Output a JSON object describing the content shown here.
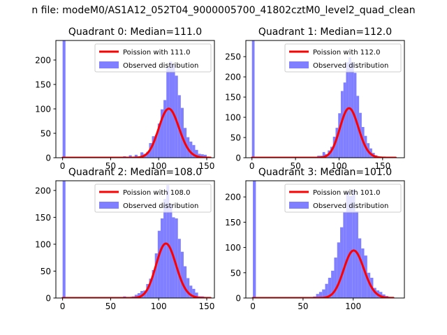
{
  "suptitle": "n file: modeM0/AS1A12_052T04_9000005700_41802cztM0_level2_quad_clean",
  "colors": {
    "poisson": "#ff0000",
    "observed": "#7f7fff"
  },
  "chart_data": [
    {
      "type": "bar",
      "title": "Quadrant 0: Median=111.0",
      "xlim": [
        -7,
        158
      ],
      "ylim": [
        0,
        240
      ],
      "xticks": [
        0,
        50,
        100,
        150
      ],
      "yticks": [
        0,
        50,
        100,
        150,
        200
      ],
      "legend_position": "top-right",
      "series": [
        {
          "name": "Observed distribution",
          "kind": "histogram",
          "bins": [
            [
              0,
              3,
              240
            ],
            [
              63,
              66,
              3
            ],
            [
              69,
              72,
              5
            ],
            [
              72,
              75,
              1
            ],
            [
              75,
              78,
              6
            ],
            [
              78,
              81,
              2
            ],
            [
              81,
              84,
              11
            ],
            [
              84,
              87,
              8
            ],
            [
              87,
              90,
              12
            ],
            [
              90,
              93,
              30
            ],
            [
              93,
              96,
              44
            ],
            [
              96,
              99,
              47
            ],
            [
              99,
              102,
              70
            ],
            [
              102,
              105,
              99
            ],
            [
              105,
              108,
              118
            ],
            [
              108,
              111,
              185
            ],
            [
              111,
              114,
              197
            ],
            [
              114,
              117,
              190
            ],
            [
              117,
              120,
              168
            ],
            [
              120,
              123,
              128
            ],
            [
              123,
              126,
              102
            ],
            [
              126,
              129,
              61
            ],
            [
              129,
              132,
              42
            ],
            [
              132,
              135,
              33
            ],
            [
              135,
              138,
              26
            ],
            [
              138,
              141,
              16
            ],
            [
              141,
              144,
              8
            ],
            [
              144,
              147,
              7
            ],
            [
              147,
              150,
              6
            ],
            [
              150,
              153,
              2
            ]
          ]
        },
        {
          "name": "Poission with 111.0",
          "kind": "poisson",
          "mean": 111.0,
          "scale": 2650,
          "xrange": [
            0,
            154
          ]
        }
      ]
    },
    {
      "type": "bar",
      "title": "Quadrant 1: Median=112.0",
      "xlim": [
        -7,
        175
      ],
      "ylim": [
        0,
        290
      ],
      "xticks": [
        0,
        50,
        100,
        150
      ],
      "yticks": [
        0,
        50,
        100,
        150,
        200,
        250
      ],
      "legend_position": "top-right",
      "series": [
        {
          "name": "Observed distribution",
          "kind": "histogram",
          "bins": [
            [
              0,
              3,
              290
            ],
            [
              60,
              63,
              1
            ],
            [
              66,
              69,
              2
            ],
            [
              69,
              72,
              2
            ],
            [
              72,
              75,
              1
            ],
            [
              75,
              78,
              5
            ],
            [
              78,
              81,
              5
            ],
            [
              81,
              84,
              14
            ],
            [
              84,
              87,
              9
            ],
            [
              87,
              90,
              18
            ],
            [
              90,
              93,
              27
            ],
            [
              93,
              96,
              52
            ],
            [
              96,
              99,
              74
            ],
            [
              99,
              102,
              110
            ],
            [
              102,
              105,
              165
            ],
            [
              105,
              108,
              186
            ],
            [
              108,
              111,
              236
            ],
            [
              111,
              114,
              248
            ],
            [
              114,
              117,
              236
            ],
            [
              117,
              120,
              210
            ],
            [
              120,
              123,
              153
            ],
            [
              123,
              126,
              111
            ],
            [
              126,
              129,
              76
            ],
            [
              129,
              132,
              54
            ],
            [
              132,
              135,
              36
            ],
            [
              135,
              138,
              23
            ],
            [
              138,
              141,
              12
            ],
            [
              141,
              144,
              6
            ],
            [
              144,
              147,
              3
            ]
          ]
        },
        {
          "name": "Poission with 112.0",
          "kind": "poisson",
          "mean": 112.0,
          "scale": 3250,
          "xrange": [
            0,
            165
          ]
        }
      ]
    },
    {
      "type": "bar",
      "title": "Quadrant 2: Median=108.0",
      "xlim": [
        -7,
        158
      ],
      "ylim": [
        0,
        218
      ],
      "xticks": [
        0,
        50,
        100,
        150
      ],
      "yticks": [
        0,
        50,
        100,
        150,
        200
      ],
      "legend_position": "top-right",
      "series": [
        {
          "name": "Observed distribution",
          "kind": "histogram",
          "bins": [
            [
              0,
              3,
              218
            ],
            [
              63,
              66,
              3
            ],
            [
              66,
              69,
              2
            ],
            [
              72,
              75,
              3
            ],
            [
              75,
              78,
              6
            ],
            [
              78,
              81,
              9
            ],
            [
              81,
              84,
              13
            ],
            [
              84,
              87,
              14
            ],
            [
              87,
              90,
              26
            ],
            [
              90,
              93,
              36
            ],
            [
              93,
              96,
              52
            ],
            [
              96,
              99,
              83
            ],
            [
              99,
              102,
              125
            ],
            [
              102,
              105,
              148
            ],
            [
              105,
              108,
              184
            ],
            [
              108,
              111,
              210
            ],
            [
              111,
              114,
              175
            ],
            [
              114,
              117,
              150
            ],
            [
              117,
              120,
              148
            ],
            [
              120,
              123,
              110
            ],
            [
              123,
              126,
              86
            ],
            [
              126,
              129,
              59
            ],
            [
              129,
              132,
              37
            ],
            [
              132,
              135,
              23
            ],
            [
              135,
              138,
              17
            ],
            [
              138,
              141,
              10
            ],
            [
              141,
              144,
              3
            ],
            [
              144,
              147,
              3
            ],
            [
              147,
              150,
              1
            ],
            [
              150,
              153,
              2
            ]
          ]
        },
        {
          "name": "Poission with 108.0",
          "kind": "poisson",
          "mean": 108.0,
          "scale": 2640,
          "xrange": [
            0,
            154
          ]
        }
      ]
    },
    {
      "type": "bar",
      "title": "Quadrant 3: Median=101.0",
      "xlim": [
        -7,
        151
      ],
      "ylim": [
        0,
        232
      ],
      "xticks": [
        0,
        50,
        100
      ],
      "yticks": [
        0,
        50,
        100,
        150,
        200
      ],
      "legend_position": "top-right",
      "series": [
        {
          "name": "Observed distribution",
          "kind": "histogram",
          "bins": [
            [
              0,
              3,
              232
            ],
            [
              54,
              57,
              2
            ],
            [
              57,
              60,
              1
            ],
            [
              60,
              63,
              3
            ],
            [
              63,
              66,
              8
            ],
            [
              66,
              69,
              12
            ],
            [
              69,
              72,
              17
            ],
            [
              72,
              75,
              28
            ],
            [
              75,
              78,
              40
            ],
            [
              78,
              81,
              54
            ],
            [
              81,
              84,
              80
            ],
            [
              84,
              87,
              110
            ],
            [
              87,
              90,
              140
            ],
            [
              90,
              93,
              170
            ],
            [
              93,
              96,
              210
            ],
            [
              96,
              99,
              202
            ],
            [
              99,
              102,
              215
            ],
            [
              102,
              105,
              172
            ],
            [
              105,
              108,
              118
            ],
            [
              108,
              111,
              98
            ],
            [
              111,
              114,
              84
            ],
            [
              114,
              117,
              50
            ],
            [
              117,
              120,
              40
            ],
            [
              120,
              123,
              20
            ],
            [
              123,
              126,
              15
            ],
            [
              126,
              129,
              12
            ],
            [
              129,
              132,
              7
            ],
            [
              132,
              135,
              4
            ]
          ]
        },
        {
          "name": "Poission with 101.0",
          "kind": "poisson",
          "mean": 101.0,
          "scale": 2370,
          "xrange": [
            0,
            140
          ]
        }
      ]
    }
  ]
}
